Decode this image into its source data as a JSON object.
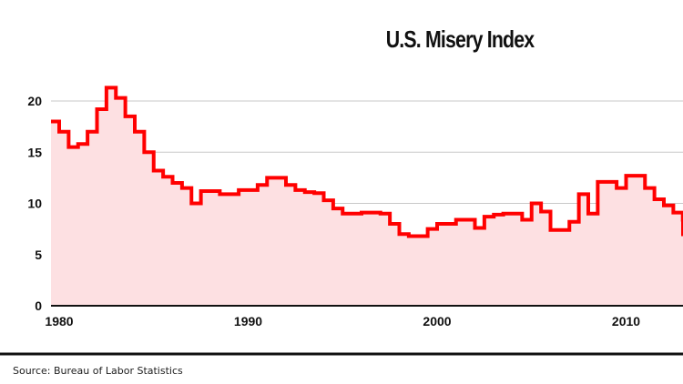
{
  "chart_data": {
    "type": "area",
    "title": "U.S. Misery Index",
    "xlabel": "",
    "ylabel": "",
    "xlim": [
      1979.5,
      2013.5
    ],
    "ylim": [
      0,
      25
    ],
    "yticks": [
      0,
      5,
      10,
      15,
      20
    ],
    "xticks": [
      1980,
      1990,
      2000,
      2010
    ],
    "grid": true,
    "legend": "none",
    "line_color": "#ff0000",
    "fill_color": "#fde0e2",
    "step": true,
    "points": [
      [
        1979.5,
        18.0
      ],
      [
        1980.0,
        17.0
      ],
      [
        1980.5,
        15.5
      ],
      [
        1981.0,
        15.8
      ],
      [
        1981.5,
        17.0
      ],
      [
        1982.0,
        19.2
      ],
      [
        1982.5,
        21.3
      ],
      [
        1983.0,
        20.3
      ],
      [
        1983.5,
        18.5
      ],
      [
        1984.0,
        17.0
      ],
      [
        1984.5,
        15.0
      ],
      [
        1985.0,
        13.2
      ],
      [
        1985.5,
        12.6
      ],
      [
        1986.0,
        12.0
      ],
      [
        1986.5,
        11.5
      ],
      [
        1987.0,
        10.0
      ],
      [
        1987.5,
        11.2
      ],
      [
        1988.0,
        11.2
      ],
      [
        1988.5,
        10.9
      ],
      [
        1989.0,
        10.9
      ],
      [
        1989.5,
        11.3
      ],
      [
        1990.0,
        11.3
      ],
      [
        1990.5,
        11.8
      ],
      [
        1991.0,
        12.5
      ],
      [
        1991.5,
        12.5
      ],
      [
        1992.0,
        11.8
      ],
      [
        1992.5,
        11.3
      ],
      [
        1993.0,
        11.1
      ],
      [
        1993.5,
        11.0
      ],
      [
        1994.0,
        10.3
      ],
      [
        1994.5,
        9.5
      ],
      [
        1995.0,
        9.0
      ],
      [
        1995.5,
        9.0
      ],
      [
        1996.0,
        9.1
      ],
      [
        1996.5,
        9.1
      ],
      [
        1997.0,
        9.0
      ],
      [
        1997.5,
        8.0
      ],
      [
        1998.0,
        7.0
      ],
      [
        1998.5,
        6.8
      ],
      [
        1999.0,
        6.8
      ],
      [
        1999.5,
        7.5
      ],
      [
        2000.0,
        8.0
      ],
      [
        2000.5,
        8.0
      ],
      [
        2001.0,
        8.4
      ],
      [
        2001.5,
        8.4
      ],
      [
        2002.0,
        7.6
      ],
      [
        2002.5,
        8.7
      ],
      [
        2003.0,
        8.9
      ],
      [
        2003.5,
        9.0
      ],
      [
        2004.0,
        9.0
      ],
      [
        2004.5,
        8.4
      ],
      [
        2005.0,
        10.0
      ],
      [
        2005.5,
        9.2
      ],
      [
        2006.0,
        7.4
      ],
      [
        2006.5,
        7.4
      ],
      [
        2007.0,
        8.2
      ],
      [
        2007.5,
        10.9
      ],
      [
        2008.0,
        9.0
      ],
      [
        2008.5,
        12.1
      ],
      [
        2009.0,
        12.1
      ],
      [
        2009.5,
        11.5
      ],
      [
        2010.0,
        12.7
      ],
      [
        2010.5,
        12.7
      ],
      [
        2011.0,
        11.5
      ],
      [
        2011.5,
        10.4
      ],
      [
        2012.0,
        9.8
      ],
      [
        2012.5,
        9.1
      ],
      [
        2013.0,
        8.4
      ],
      [
        2013.5,
        6.8
      ]
    ]
  },
  "footer": {
    "source": "Source: Bureau of Labor Statistics"
  }
}
